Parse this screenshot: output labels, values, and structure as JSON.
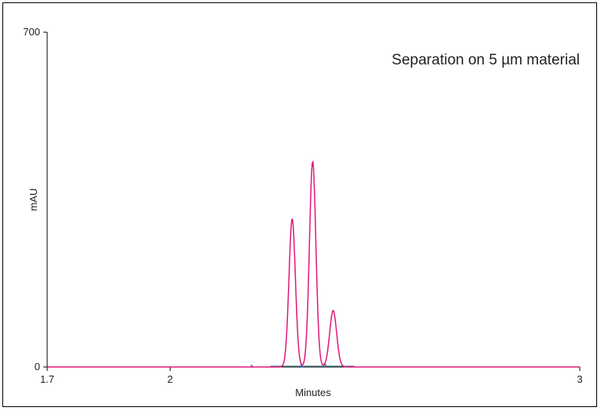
{
  "chart_data": {
    "type": "line",
    "title": "",
    "annotation": "Separation on 5 µm material",
    "xlabel": "Minutes",
    "ylabel": "mAU",
    "xlim": [
      1.7,
      3.0
    ],
    "ylim": [
      0,
      700
    ],
    "x_ticks": [
      1.7,
      2,
      3
    ],
    "x_tick_labels": [
      "1.7",
      "2",
      "3"
    ],
    "y_ticks": [
      0,
      700
    ],
    "y_tick_labels": [
      "0",
      "700"
    ],
    "grid": false,
    "legend": "none",
    "series": [
      {
        "color": "#e0177a",
        "peaks": [
          {
            "rt": 2.298,
            "height": 310,
            "sigma": 0.0078
          },
          {
            "rt": 2.348,
            "height": 430,
            "sigma": 0.0078
          },
          {
            "rt": 2.398,
            "height": 118,
            "sigma": 0.0085
          }
        ]
      }
    ],
    "integration_markers": {
      "color": "#29b6d6",
      "baseline_start": 2.245,
      "baseline_end": 2.45,
      "drop_lines": [
        2.2,
        2.322,
        2.378
      ]
    }
  }
}
